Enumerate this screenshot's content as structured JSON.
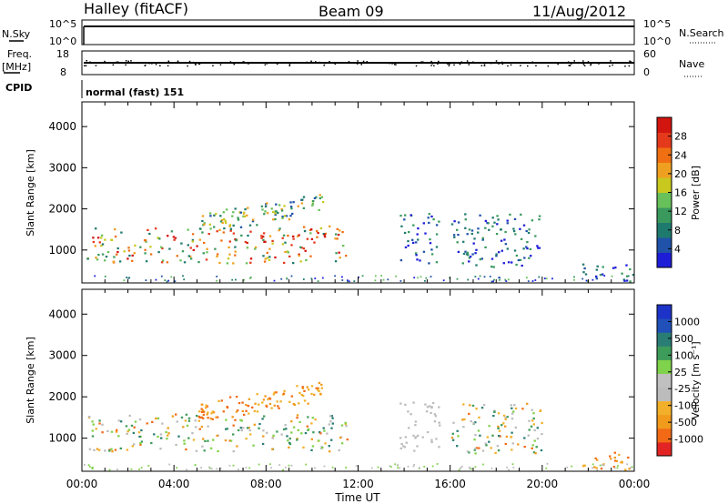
{
  "header": {
    "station": "Halley (fitACF)",
    "beam": "Beam 09",
    "date": "11/Aug/2012"
  },
  "colors": {
    "power_scale": [
      "#1d1dd8",
      "#1f52a8",
      "#1f7a6e",
      "#3a9a5e",
      "#68c05a",
      "#c8c81e",
      "#f0a020",
      "#ef6f12",
      "#e4391b",
      "#d2150f"
    ],
    "velocity_scale": [
      "#e32424",
      "#f26a16",
      "#f19a1c",
      "#f2b02a",
      "#bcbcbc",
      "#c0c0c0",
      "#7fd24a",
      "#3e9c5a",
      "#2a7d74",
      "#2050b8",
      "#1d33c8"
    ],
    "ground_scatter": "#bcbcbc"
  },
  "panels": {
    "nsky": {
      "left_label": "N.Sky",
      "left_ticks": [
        "10^5",
        "10^0"
      ],
      "right_label": "N.Search",
      "right_ticks": [
        "10^5",
        "10^0"
      ]
    },
    "freq": {
      "left_label_1": "Freq.",
      "left_label_2": "[MHz]",
      "left_ticks": [
        "18",
        "8"
      ],
      "right_label": "Nave",
      "right_ticks": [
        "60",
        "0"
      ]
    },
    "cpid": {
      "label": "CPID",
      "text": "normal (fast) 151"
    }
  },
  "chart_data": [
    {
      "type": "heatmap",
      "name": "power",
      "ylabel": "Slant Range [km]",
      "xlabel": "Time UT",
      "y_ticks": [
        "1000",
        "2000",
        "3000",
        "4000"
      ],
      "ylim": [
        200,
        4600
      ],
      "x_ticks": [
        "00:00",
        "04:00",
        "08:00",
        "12:00",
        "16:00",
        "20:00",
        "00:00"
      ],
      "xlim_hours": [
        0,
        24
      ],
      "colorbar": {
        "label": "Power [dB]",
        "ticks": [
          "4",
          "8",
          "12",
          "16",
          "20",
          "24",
          "28"
        ],
        "range": [
          0,
          30
        ]
      },
      "scatter_regions": [
        {
          "t": [
            0.2,
            11.5
          ],
          "r": [
            700,
            1600
          ],
          "level": "mixed-high"
        },
        {
          "t": [
            5.0,
            10.5
          ],
          "r": [
            1400,
            2300
          ],
          "level": "mid"
        },
        {
          "t": [
            13.8,
            15.5
          ],
          "r": [
            700,
            1900
          ],
          "level": "low"
        },
        {
          "t": [
            16.0,
            20.0
          ],
          "r": [
            600,
            1900
          ],
          "level": "low"
        },
        {
          "t": [
            21.5,
            24.0
          ],
          "r": [
            250,
            700
          ],
          "level": "low"
        }
      ]
    },
    {
      "type": "heatmap",
      "name": "velocity",
      "ylabel": "Slant Range [km]",
      "xlabel": "Time UT",
      "y_ticks": [
        "1000",
        "2000",
        "3000",
        "4000"
      ],
      "ylim": [
        200,
        4600
      ],
      "x_ticks": [
        "00:00",
        "04:00",
        "08:00",
        "12:00",
        "16:00",
        "20:00",
        "00:00"
      ],
      "xlim_hours": [
        0,
        24
      ],
      "colorbar": {
        "label": "Velocity [m s⁻¹]",
        "ticks": [
          "1000",
          "500",
          "100",
          "25",
          "-25",
          "-100",
          "-500",
          "-1000"
        ],
        "range": [
          -1000,
          1000
        ]
      },
      "scatter_regions": [
        {
          "t": [
            0.2,
            11.5
          ],
          "r": [
            700,
            1600
          ],
          "level": "mixed"
        },
        {
          "t": [
            5.0,
            10.5
          ],
          "r": [
            1400,
            2300
          ],
          "level": "negative"
        },
        {
          "t": [
            13.8,
            15.5
          ],
          "r": [
            700,
            1900
          ],
          "level": "ground"
        },
        {
          "t": [
            16.0,
            20.0
          ],
          "r": [
            600,
            1900
          ],
          "level": "mixed"
        },
        {
          "t": [
            21.5,
            24.0
          ],
          "r": [
            250,
            700
          ],
          "level": "negative"
        }
      ]
    }
  ]
}
